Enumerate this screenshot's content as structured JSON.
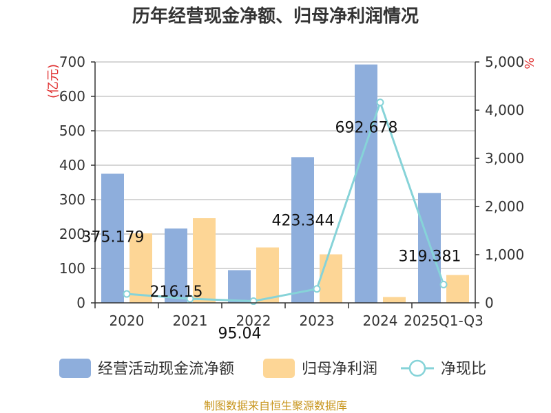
{
  "chart_data": {
    "type": "bar",
    "title": "历年经营现金净额、归母净利润情况",
    "categories": [
      "2020",
      "2021",
      "2022",
      "2023",
      "2024",
      "2025Q1-Q3"
    ],
    "left_axis": {
      "unit": "(亿元)",
      "min": 0,
      "max": 700,
      "ticks": [
        "0",
        "100",
        "200",
        "300",
        "400",
        "500",
        "600",
        "700"
      ],
      "tick_values": [
        0,
        100,
        200,
        300,
        400,
        500,
        600,
        700
      ]
    },
    "right_axis": {
      "unit": "%",
      "min": 0,
      "max": 5000,
      "ticks": [
        "0",
        "1,000",
        "2,000",
        "3,000",
        "4,000",
        "5,000"
      ],
      "tick_values": [
        0,
        1000,
        2000,
        3000,
        4000,
        5000
      ]
    },
    "series": [
      {
        "name": "经营活动现金流净额",
        "type": "bar",
        "axis": "left",
        "color": "#8eaedc",
        "values": [
          375.179,
          216.15,
          95.04,
          423.344,
          692.678,
          319.381
        ],
        "labels": [
          "375.179",
          "216.15",
          "95.04",
          "423.344",
          "692.678",
          "319.381"
        ]
      },
      {
        "name": "归母净利润",
        "type": "bar",
        "axis": "left",
        "color": "#fdd696",
        "values": [
          202,
          246,
          161,
          141,
          17,
          81
        ]
      },
      {
        "name": "净现比",
        "type": "line",
        "axis": "right",
        "color": "#86d3d8",
        "values": [
          185,
          85,
          35,
          290,
          4160,
          380
        ]
      }
    ],
    "grid": true,
    "legend_position": "bottom",
    "source": "制图数据来自恒生聚源数据库"
  }
}
